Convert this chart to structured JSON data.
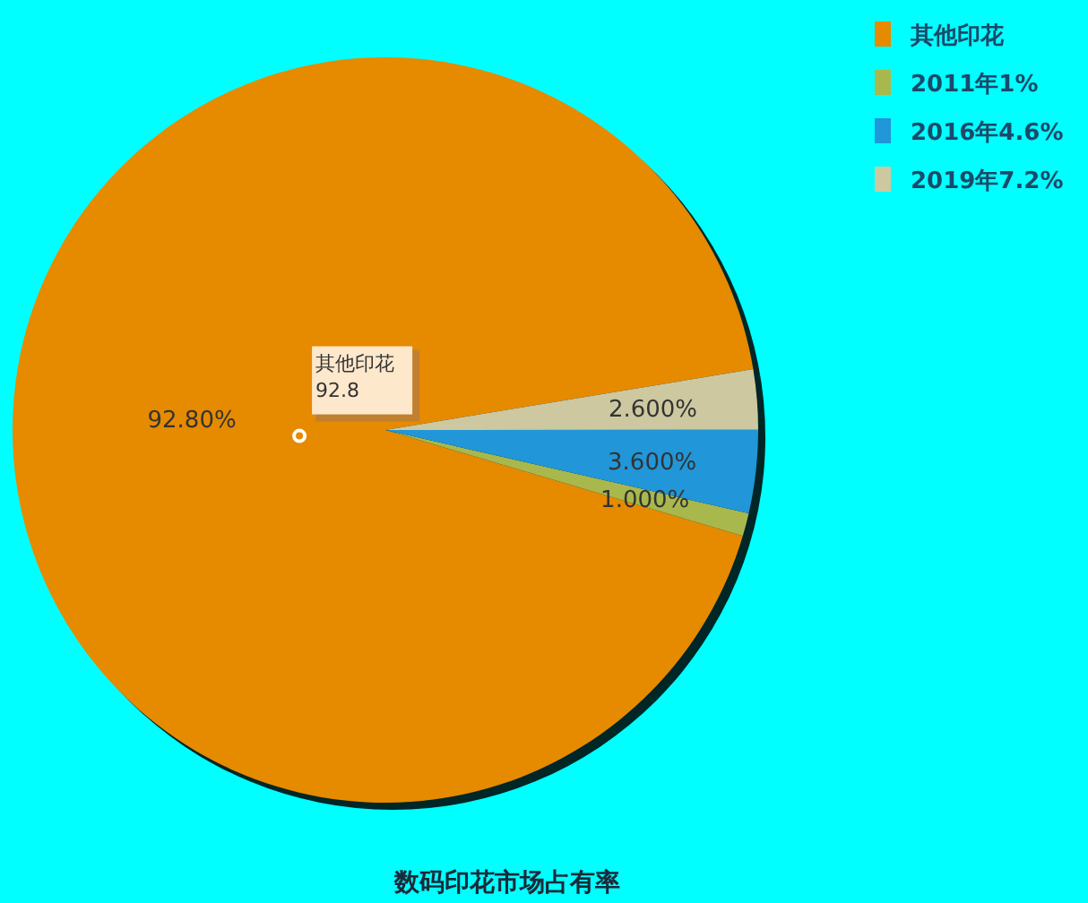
{
  "chart_data": {
    "type": "pie",
    "title": "数码印花市场占有率",
    "categories": [
      "其他印花",
      "2011年1%",
      "2016年4.6%",
      "2019年7.2%"
    ],
    "values": [
      92.8,
      1,
      3.6,
      2.6
    ],
    "colors": [
      "#e68a00",
      "#a8b84c",
      "#2196d8",
      "#cdc8a0"
    ],
    "value_labels": [
      "92.80%",
      "1.000%",
      "3.600%",
      "2.600%"
    ],
    "annotations": [
      "其他印花\n92.8"
    ],
    "legend": "top right"
  }
}
